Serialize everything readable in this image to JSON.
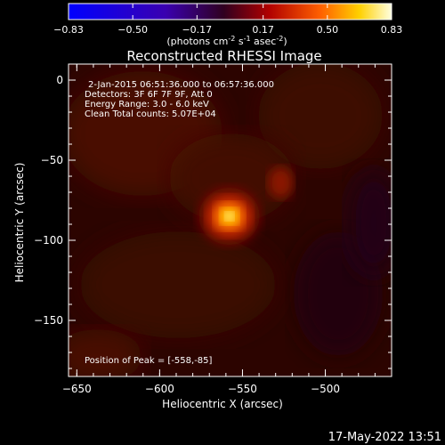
{
  "colorbar": {
    "ticks": [
      "-0.83",
      "-0.50",
      "-0.17",
      "0.17",
      "0.50",
      "0.83"
    ],
    "units_main": "(photons cm",
    "units_exp1": "-2",
    "units_mid": " s",
    "units_exp2": "-1",
    "units_mid2": " asec",
    "units_exp3": "-2",
    "units_close": ")"
  },
  "chart_data": {
    "type": "heatmap",
    "title": "Reconstructed RHESSI Image",
    "xlabel": "Heliocentric X (arcsec)",
    "ylabel": "Heliocentric Y (arcsec)",
    "xlim": [
      -655,
      -460
    ],
    "ylim": [
      -185,
      10
    ],
    "xticks": [
      -650,
      -600,
      -550,
      -500
    ],
    "yticks": [
      0,
      -50,
      -100,
      -150
    ],
    "color_range": [
      -0.83,
      0.83
    ],
    "peak": [
      -558,
      -85
    ],
    "secondary_source": [
      -527,
      -64
    ],
    "annotations": {
      "time_range": "2-Jan-2015 06:51:36.000 to 06:57:36.000",
      "detectors": "Detectors: 3F 6F 7F 9F, Att 0",
      "energy": "Energy Range: 3.0 - 6.0 keV",
      "clean": "Clean    Total counts: 5.07E+04",
      "peak_text": "Position of Peak = [-558,-85]"
    }
  },
  "footer_date": "17-May-2022 13:51",
  "colors": {
    "background": "#000000",
    "text": "#ffffff"
  }
}
